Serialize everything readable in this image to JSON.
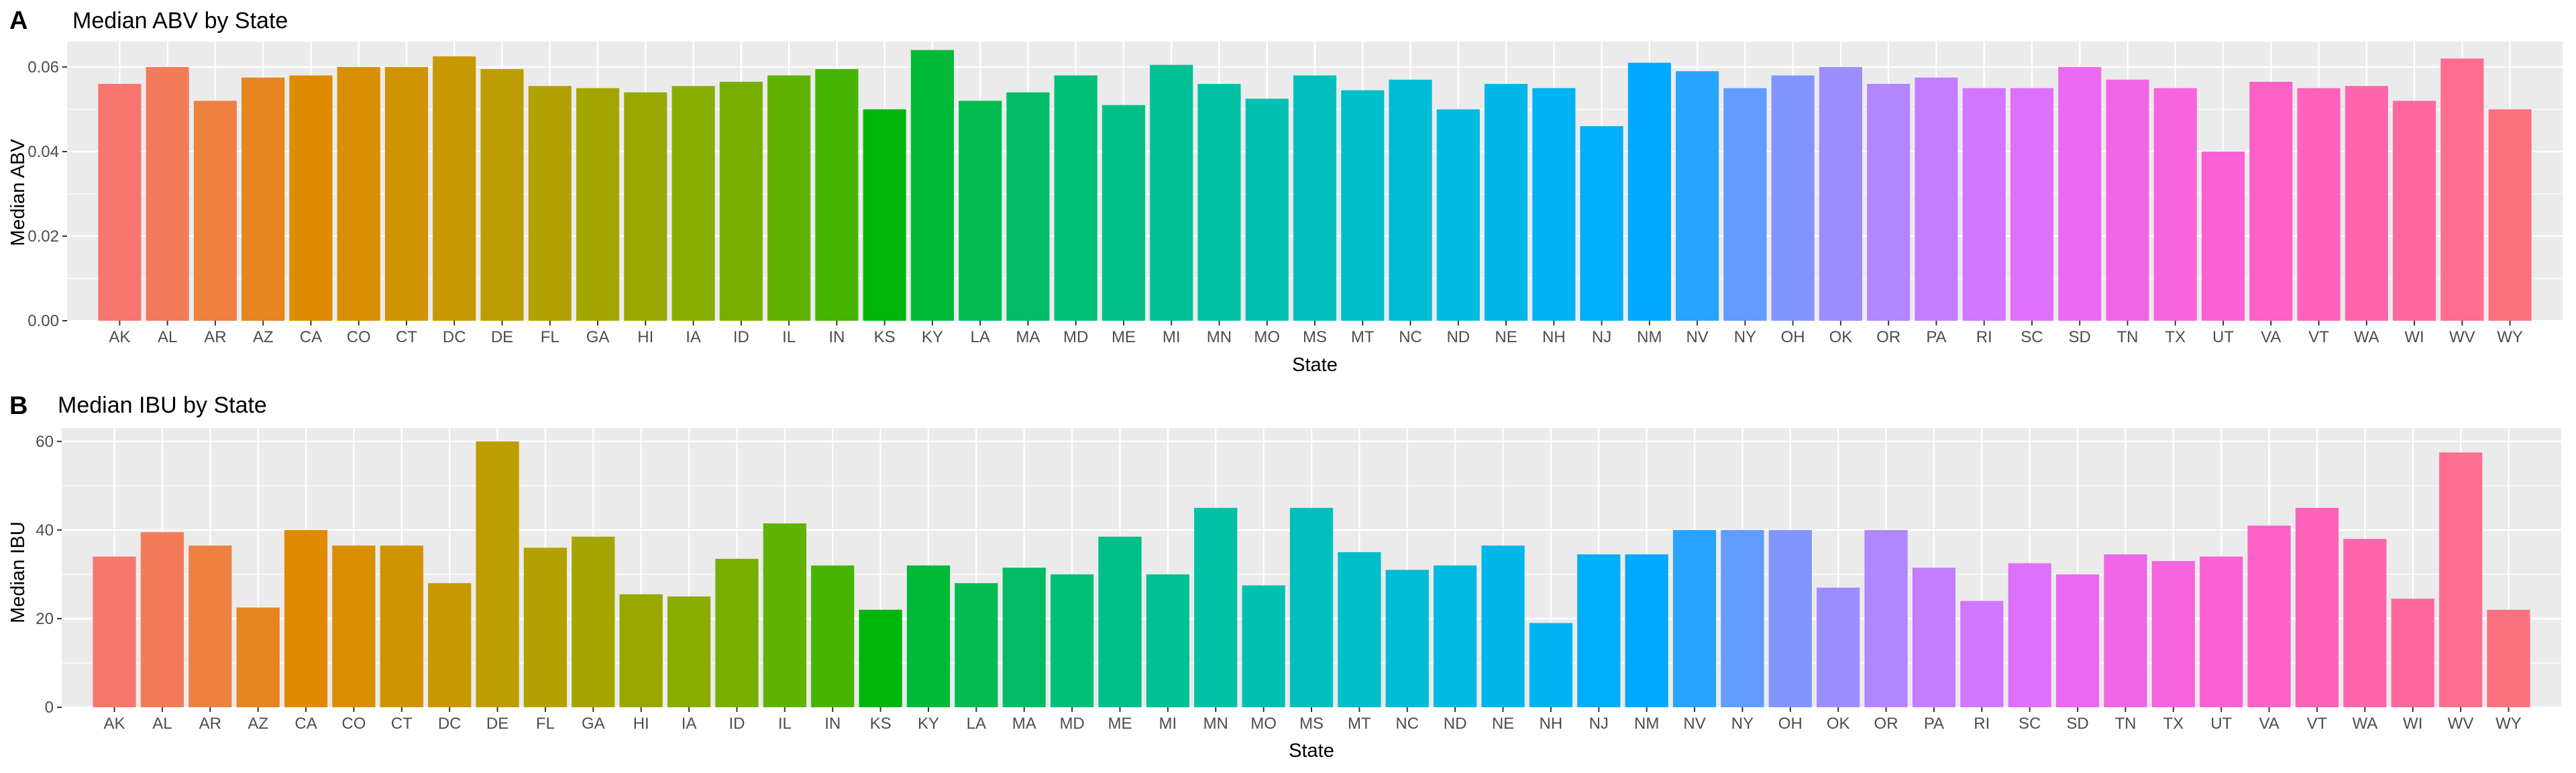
{
  "chart_data": [
    {
      "type": "bar",
      "panel_tag": "A",
      "title": "Median ABV by State",
      "xlabel": "State",
      "ylabel": "Median ABV",
      "ylim": [
        0,
        0.066
      ],
      "yticks": [
        0,
        0.02,
        0.04,
        0.06
      ],
      "ytick_labels": [
        "0.00",
        "0.02",
        "0.04",
        "0.06"
      ],
      "grid": true,
      "legend": "none",
      "categories": [
        "AK",
        "AL",
        "AR",
        "AZ",
        "CA",
        "CO",
        "CT",
        "DC",
        "DE",
        "FL",
        "GA",
        "HI",
        "IA",
        "ID",
        "IL",
        "IN",
        "KS",
        "KY",
        "LA",
        "MA",
        "MD",
        "ME",
        "MI",
        "MN",
        "MO",
        "MS",
        "MT",
        "NC",
        "ND",
        "NE",
        "NH",
        "NJ",
        "NM",
        "NV",
        "NY",
        "OH",
        "OK",
        "OR",
        "PA",
        "RI",
        "SC",
        "SD",
        "TN",
        "TX",
        "UT",
        "VA",
        "VT",
        "WA",
        "WI",
        "WV",
        "WY"
      ],
      "values": [
        0.056,
        0.06,
        0.052,
        0.0575,
        0.058,
        0.06,
        0.06,
        0.0625,
        0.0595,
        0.0555,
        0.055,
        0.054,
        0.0555,
        0.0565,
        0.058,
        0.0595,
        0.05,
        0.064,
        0.052,
        0.054,
        0.058,
        0.051,
        0.0605,
        0.056,
        0.0525,
        0.058,
        0.0545,
        0.057,
        0.05,
        0.056,
        0.055,
        0.046,
        0.061,
        0.059,
        0.055,
        0.058,
        0.06,
        0.056,
        0.0575,
        0.055,
        0.055,
        0.06,
        0.057,
        0.055,
        0.04,
        0.0565,
        0.055,
        0.0555,
        0.052,
        0.062,
        0.05
      ]
    },
    {
      "type": "bar",
      "panel_tag": "B",
      "title": "Median IBU by State",
      "xlabel": "State",
      "ylabel": "Median IBU",
      "ylim": [
        0,
        63
      ],
      "yticks": [
        0,
        20,
        40,
        60
      ],
      "ytick_labels": [
        "0",
        "20",
        "40",
        "60"
      ],
      "grid": true,
      "legend": "none",
      "categories": [
        "AK",
        "AL",
        "AR",
        "AZ",
        "CA",
        "CO",
        "CT",
        "DC",
        "DE",
        "FL",
        "GA",
        "HI",
        "IA",
        "ID",
        "IL",
        "IN",
        "KS",
        "KY",
        "LA",
        "MA",
        "MD",
        "ME",
        "MI",
        "MN",
        "MO",
        "MS",
        "MT",
        "NC",
        "ND",
        "NE",
        "NH",
        "NJ",
        "NM",
        "NV",
        "NY",
        "OH",
        "OK",
        "OR",
        "PA",
        "RI",
        "SC",
        "SD",
        "TN",
        "TX",
        "UT",
        "VA",
        "VT",
        "WA",
        "WI",
        "WV",
        "WY"
      ],
      "values": [
        34,
        39.5,
        36.5,
        22.5,
        40,
        36.5,
        36.5,
        28,
        60,
        36,
        38.5,
        25.5,
        25,
        33.5,
        41.5,
        32,
        22,
        32,
        28,
        31.5,
        30,
        38.5,
        30,
        45,
        27.5,
        45,
        35,
        31,
        32,
        36.5,
        19,
        34.5,
        34.5,
        40,
        40,
        40,
        27,
        40,
        31.5,
        24,
        32.5,
        30,
        34.5,
        33,
        34,
        41,
        45,
        38,
        24.5,
        57.5,
        22
      ]
    }
  ]
}
